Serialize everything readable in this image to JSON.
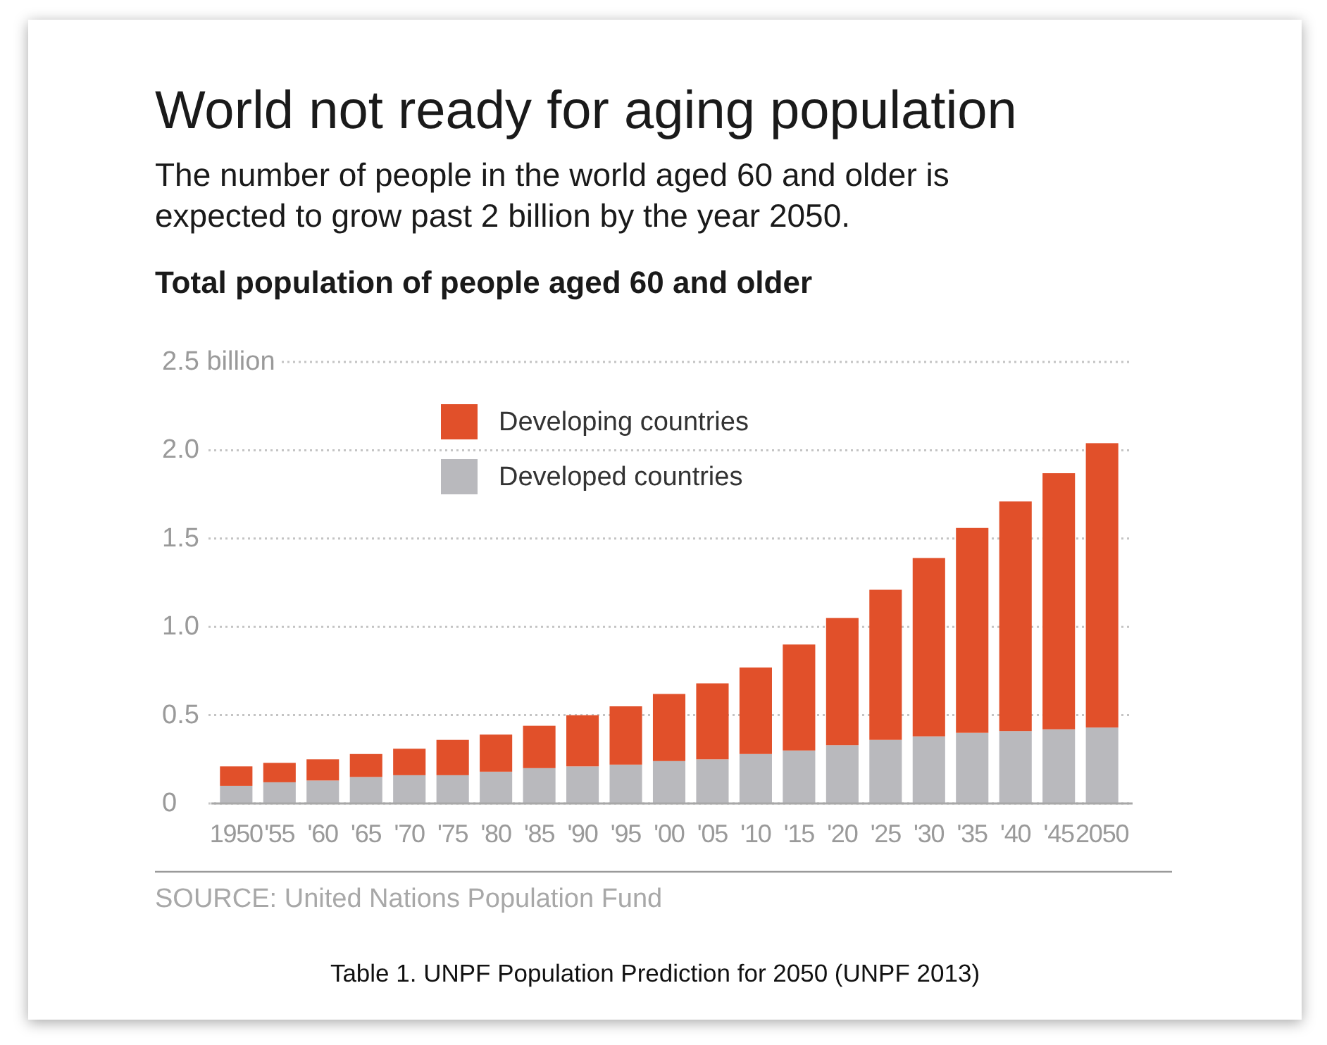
{
  "chart_data": {
    "type": "bar",
    "title": "World not ready for aging population",
    "subtitle": "The number of people in the world aged 60 and older is expected to grow past 2 billion by the year 2050.",
    "ylabel": "Total population of people aged 60 and older",
    "categories": [
      "1950",
      "'55",
      "'60",
      "'65",
      "'70",
      "'75",
      "'80",
      "'85",
      "'90",
      "'95",
      "'00",
      "'05",
      "'10",
      "'15",
      "'20",
      "'25",
      "'30",
      "'35",
      "'40",
      "'45",
      "2050"
    ],
    "series": [
      {
        "name": "Developed countries",
        "color": "#b9b9bd",
        "values": [
          0.1,
          0.12,
          0.13,
          0.15,
          0.16,
          0.16,
          0.18,
          0.2,
          0.21,
          0.22,
          0.24,
          0.25,
          0.28,
          0.3,
          0.33,
          0.36,
          0.38,
          0.4,
          0.41,
          0.42,
          0.43
        ]
      },
      {
        "name": "Developing countries",
        "color": "#e1502a",
        "values": [
          0.11,
          0.11,
          0.12,
          0.13,
          0.15,
          0.2,
          0.21,
          0.24,
          0.29,
          0.33,
          0.38,
          0.43,
          0.49,
          0.6,
          0.72,
          0.85,
          1.01,
          1.16,
          1.3,
          1.45,
          1.61
        ]
      }
    ],
    "stacked": true,
    "ylim": [
      0,
      2.5
    ],
    "yticks": [
      0,
      0.5,
      {
        "value": 1,
        "label": "1.0"
      },
      1.5,
      {
        "value": 2,
        "label": "2.0"
      },
      {
        "value": 2.5,
        "label": "2.5 billion"
      }
    ],
    "grid": "y",
    "legend": "top left",
    "annotations": [
      "SOURCE: United Nations Population Fund",
      "Table 1. UNPF Population Prediction for 2050 (UNPF 2013)"
    ]
  }
}
